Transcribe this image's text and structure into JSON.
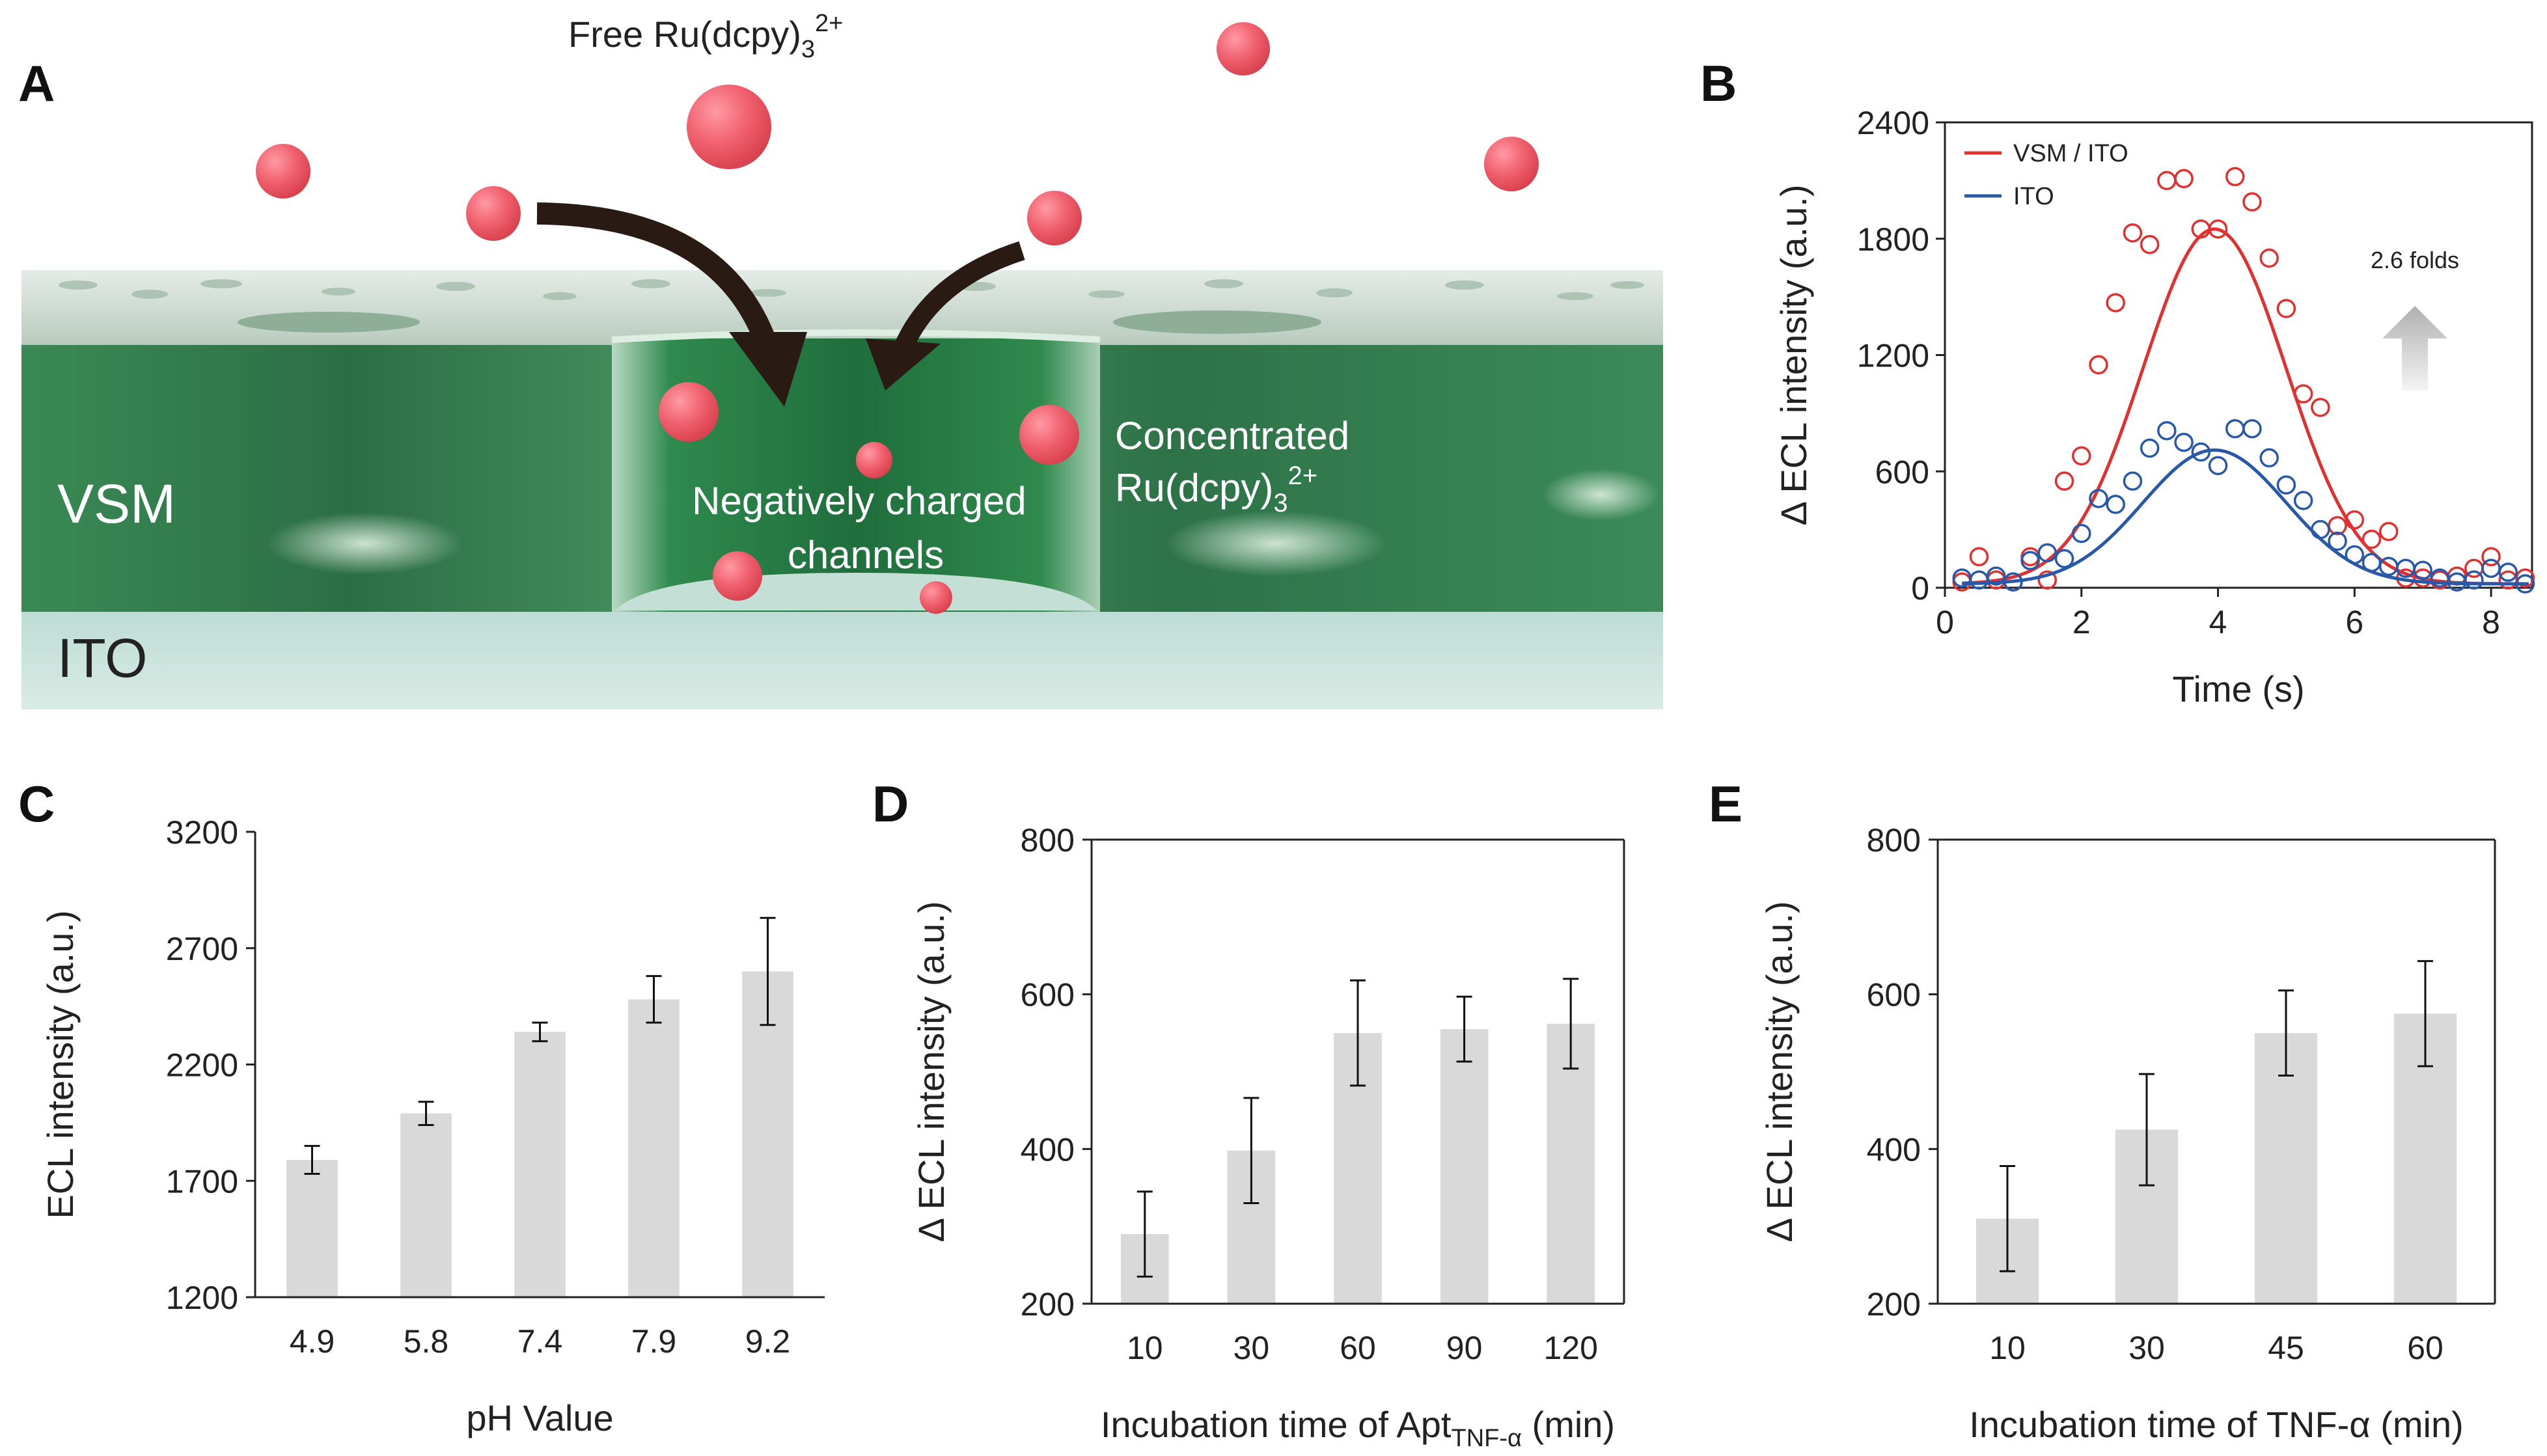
{
  "panel_letters": {
    "a": "A",
    "b": "B",
    "c": "C",
    "d": "D",
    "e": "E"
  },
  "schematic": {
    "free_label": "Free Ru(dcpy)",
    "free_sub": "3",
    "free_sup": "2+",
    "conc_label_line1": "Concentrated",
    "conc_label_line2": "Ru(dcpy)",
    "conc_sub": "3",
    "conc_sup": "2+",
    "channel_label_line1": "Negatively charged",
    "channel_label_line2": "channels",
    "vsm_label": "VSM",
    "ito_label": "ITO",
    "colors": {
      "ball": "#f06070",
      "film": "#2f7d4a",
      "ito": "#cfe6e0",
      "arrow": "#2a1a14"
    }
  },
  "chart_data": [
    {
      "id": "B",
      "type": "scatter",
      "title": "",
      "xlabel": "Time (s)",
      "ylabel": "Δ ECL intensity (a.u.)",
      "xlim": [
        0,
        8.6
      ],
      "ylim": [
        0,
        2400
      ],
      "xticks": [
        0,
        2,
        4,
        6,
        8
      ],
      "yticks": [
        0,
        600,
        1200,
        1800,
        2400
      ],
      "annotation": "2.6 folds",
      "series": [
        {
          "name": "VSM / ITO",
          "color": "#e03030",
          "x": [
            0.25,
            0.5,
            0.75,
            1.0,
            1.25,
            1.5,
            1.75,
            2.0,
            2.25,
            2.5,
            2.75,
            3.0,
            3.25,
            3.5,
            3.75,
            4.0,
            4.25,
            4.5,
            4.75,
            5.0,
            5.25,
            5.5,
            5.75,
            6.0,
            6.25,
            6.5,
            6.75,
            7.0,
            7.25,
            7.5,
            7.75,
            8.0,
            8.25,
            8.5
          ],
          "y": [
            30,
            160,
            40,
            30,
            160,
            40,
            550,
            680,
            1150,
            1470,
            1830,
            1770,
            2100,
            2110,
            1850,
            1850,
            2120,
            1990,
            1700,
            1440,
            1000,
            930,
            320,
            350,
            250,
            290,
            50,
            50,
            40,
            60,
            100,
            160,
            40,
            50
          ],
          "fit": {
            "peak": 1850,
            "center": 3.95,
            "sigma": 1.05,
            "baseline": 20
          }
        },
        {
          "name": "ITO",
          "color": "#2858a8",
          "x": [
            0.25,
            0.5,
            0.75,
            1.0,
            1.25,
            1.5,
            1.75,
            2.0,
            2.25,
            2.5,
            2.75,
            3.0,
            3.25,
            3.5,
            3.75,
            4.0,
            4.25,
            4.5,
            4.75,
            5.0,
            5.25,
            5.5,
            5.75,
            6.0,
            6.25,
            6.5,
            6.75,
            7.0,
            7.25,
            7.5,
            7.75,
            8.0,
            8.25,
            8.5
          ],
          "y": [
            50,
            40,
            60,
            30,
            140,
            180,
            150,
            280,
            460,
            430,
            550,
            720,
            810,
            750,
            700,
            630,
            820,
            820,
            670,
            530,
            450,
            300,
            240,
            170,
            130,
            110,
            100,
            90,
            50,
            30,
            40,
            100,
            80,
            20
          ],
          "fit": {
            "peak": 710,
            "center": 3.95,
            "sigma": 1.05,
            "baseline": 20
          }
        }
      ]
    },
    {
      "id": "C",
      "type": "bar",
      "xlabel": "pH Value",
      "ylabel": "ECL intensity (a.u.)",
      "ylim": [
        1200,
        3200
      ],
      "yticks": [
        1200,
        1700,
        2200,
        2700,
        3200
      ],
      "categories": [
        "4.9",
        "5.8",
        "7.4",
        "7.9",
        "9.2"
      ],
      "values": [
        1790,
        1990,
        2340,
        2480,
        2600
      ],
      "errors": [
        60,
        50,
        40,
        100,
        230
      ]
    },
    {
      "id": "D",
      "type": "bar",
      "xlabel_prefix": "Incubation time of Apt",
      "xlabel_sub": "TNF-α",
      "xlabel_suffix": " (min)",
      "ylabel": "Δ ECL intensity (a.u.)",
      "ylim": [
        200,
        800
      ],
      "yticks": [
        200,
        400,
        600,
        800
      ],
      "categories": [
        "10",
        "30",
        "60",
        "90",
        "120"
      ],
      "values": [
        290,
        398,
        550,
        555,
        562
      ],
      "errors": [
        55,
        68,
        68,
        42,
        58
      ]
    },
    {
      "id": "E",
      "type": "bar",
      "xlabel": "Incubation time of TNF-α (min)",
      "ylabel": "Δ ECL intensity (a.u.)",
      "ylim": [
        200,
        800
      ],
      "yticks": [
        200,
        400,
        600,
        800
      ],
      "categories": [
        "10",
        "30",
        "45",
        "60"
      ],
      "values": [
        310,
        425,
        550,
        575
      ],
      "errors": [
        68,
        72,
        55,
        68
      ]
    }
  ]
}
